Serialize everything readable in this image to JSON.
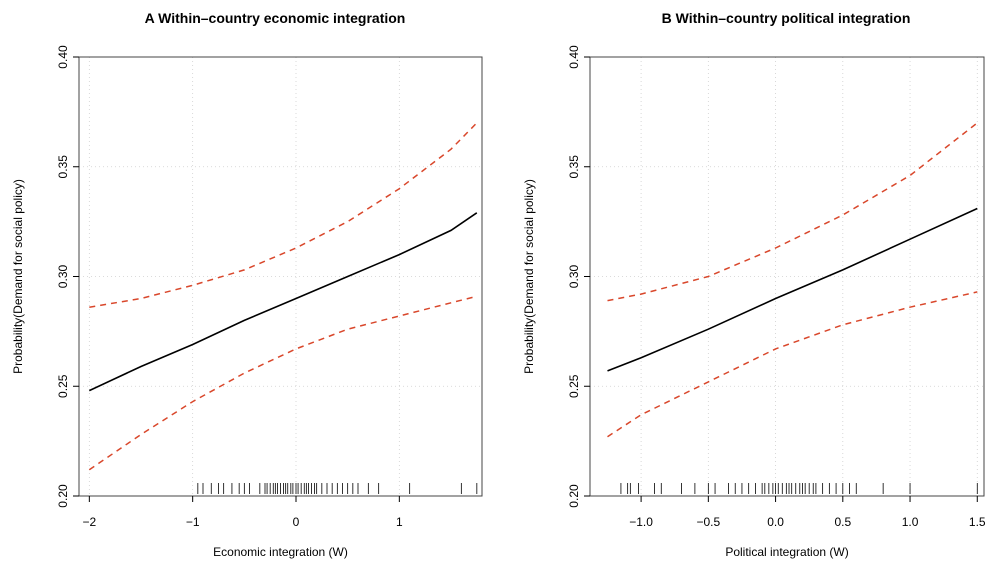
{
  "chart_data": [
    {
      "type": "line",
      "title": "A Within–country economic integration",
      "xlabel": "Economic integration (W)",
      "ylabel": "Probability(Demand for social policy)",
      "xlim": [
        -2.1,
        1.8
      ],
      "ylim": [
        0.2,
        0.4
      ],
      "xticks": [
        -2,
        -1,
        0,
        1
      ],
      "xtick_labels": [
        "−2",
        "−1",
        "0",
        "1"
      ],
      "yticks": [
        0.2,
        0.25,
        0.3,
        0.35,
        0.4
      ],
      "ytick_labels": [
        "0.20",
        "0.25",
        "0.30",
        "0.35",
        "0.40"
      ],
      "grid": true,
      "colors": {
        "fit": "#000000",
        "ci": "#d9472b"
      },
      "series": [
        {
          "role": "estimate",
          "x": [
            -2.0,
            -1.5,
            -1.0,
            -0.5,
            0.0,
            0.5,
            1.0,
            1.5,
            1.75
          ],
          "y": [
            0.248,
            0.259,
            0.269,
            0.28,
            0.29,
            0.3,
            0.31,
            0.321,
            0.329
          ]
        },
        {
          "role": "upper-ci",
          "x": [
            -2.0,
            -1.5,
            -1.0,
            -0.5,
            0.0,
            0.5,
            1.0,
            1.5,
            1.75
          ],
          "y": [
            0.286,
            0.29,
            0.296,
            0.303,
            0.313,
            0.325,
            0.34,
            0.358,
            0.37
          ]
        },
        {
          "role": "lower-ci",
          "x": [
            -2.0,
            -1.5,
            -1.0,
            -0.5,
            0.0,
            0.5,
            1.0,
            1.5,
            1.75
          ],
          "y": [
            0.212,
            0.228,
            0.243,
            0.256,
            0.267,
            0.276,
            0.282,
            0.288,
            0.291
          ]
        }
      ],
      "rug": [
        -0.95,
        -0.9,
        -0.82,
        -0.75,
        -0.7,
        -0.62,
        -0.55,
        -0.5,
        -0.45,
        -0.35,
        -0.3,
        -0.28,
        -0.25,
        -0.22,
        -0.2,
        -0.18,
        -0.15,
        -0.12,
        -0.1,
        -0.08,
        -0.05,
        -0.03,
        0.0,
        0.02,
        0.05,
        0.08,
        0.1,
        0.12,
        0.15,
        0.18,
        0.2,
        0.25,
        0.3,
        0.35,
        0.4,
        0.45,
        0.5,
        0.55,
        0.6,
        0.7,
        0.8,
        1.1,
        1.6,
        1.75
      ]
    },
    {
      "type": "line",
      "title": "B Within–country political integration",
      "xlabel": "Political integration (W)",
      "ylabel": "Probability(Demand for social policy)",
      "xlim": [
        -1.38,
        1.55
      ],
      "ylim": [
        0.2,
        0.4
      ],
      "xticks": [
        -1.0,
        -0.5,
        0.0,
        0.5,
        1.0,
        1.5
      ],
      "xtick_labels": [
        "−1.0",
        "−0.5",
        "0.0",
        "0.5",
        "1.0",
        "1.5"
      ],
      "yticks": [
        0.2,
        0.25,
        0.3,
        0.35,
        0.4
      ],
      "ytick_labels": [
        "0.20",
        "0.25",
        "0.30",
        "0.35",
        "0.40"
      ],
      "grid": true,
      "colors": {
        "fit": "#000000",
        "ci": "#d9472b"
      },
      "series": [
        {
          "role": "estimate",
          "x": [
            -1.25,
            -1.0,
            -0.5,
            0.0,
            0.5,
            1.0,
            1.5
          ],
          "y": [
            0.257,
            0.263,
            0.276,
            0.29,
            0.303,
            0.317,
            0.331
          ]
        },
        {
          "role": "upper-ci",
          "x": [
            -1.25,
            -1.0,
            -0.5,
            0.0,
            0.5,
            1.0,
            1.5
          ],
          "y": [
            0.289,
            0.292,
            0.3,
            0.313,
            0.328,
            0.346,
            0.37
          ]
        },
        {
          "role": "lower-ci",
          "x": [
            -1.25,
            -1.0,
            -0.5,
            0.0,
            0.5,
            1.0,
            1.5
          ],
          "y": [
            0.227,
            0.237,
            0.252,
            0.267,
            0.278,
            0.286,
            0.293
          ]
        }
      ],
      "rug": [
        -1.15,
        -1.1,
        -1.08,
        -1.02,
        -0.9,
        -0.85,
        -0.7,
        -0.6,
        -0.5,
        -0.45,
        -0.35,
        -0.3,
        -0.25,
        -0.2,
        -0.15,
        -0.1,
        -0.08,
        -0.05,
        -0.02,
        0.0,
        0.02,
        0.05,
        0.08,
        0.1,
        0.12,
        0.15,
        0.18,
        0.2,
        0.22,
        0.25,
        0.28,
        0.3,
        0.35,
        0.4,
        0.45,
        0.5,
        0.55,
        0.6,
        0.8,
        1.0,
        1.5
      ]
    }
  ]
}
